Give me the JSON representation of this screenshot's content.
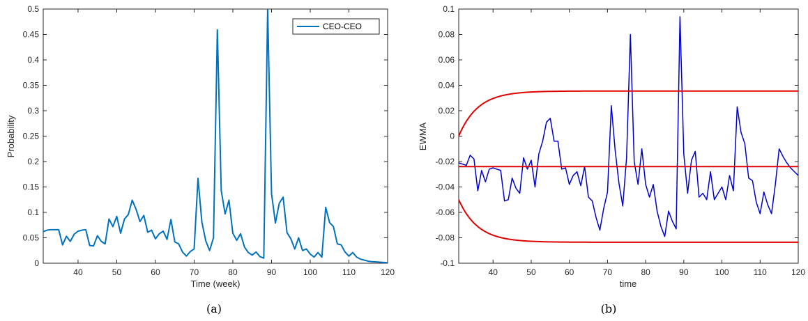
{
  "chart_data": [
    {
      "type": "line",
      "caption": "(a)",
      "xlabel": "Time (week)",
      "ylabel": "Probability",
      "xlim": [
        31,
        120
      ],
      "ylim": [
        0,
        0.5
      ],
      "xticks": [
        40,
        50,
        60,
        70,
        80,
        90,
        100,
        110,
        120
      ],
      "yticks": [
        0,
        0.05,
        0.1,
        0.15,
        0.2,
        0.25,
        0.3,
        0.35,
        0.4,
        0.45,
        0.5
      ],
      "ytick_labels": [
        "0",
        "0.05",
        "0.1",
        "0.15",
        "0.2",
        "0.25",
        "0.3",
        "0.35",
        "0.4",
        "0.45",
        "0.5"
      ],
      "grid": false,
      "legend_position": "top-right",
      "colors": {
        "series": "#0072BD"
      },
      "series": [
        {
          "name": "CEO-CEO",
          "x": [
            31,
            32,
            33,
            34,
            35,
            36,
            37,
            38,
            39,
            40,
            41,
            42,
            43,
            44,
            45,
            46,
            47,
            48,
            49,
            50,
            51,
            52,
            53,
            54,
            55,
            56,
            57,
            58,
            59,
            60,
            61,
            62,
            63,
            64,
            65,
            66,
            67,
            68,
            69,
            70,
            71,
            72,
            73,
            74,
            75,
            76,
            77,
            78,
            79,
            80,
            81,
            82,
            83,
            84,
            85,
            86,
            87,
            88,
            89,
            90,
            91,
            92,
            93,
            94,
            95,
            96,
            97,
            98,
            99,
            100,
            101,
            102,
            103,
            104,
            105,
            106,
            107,
            108,
            109,
            110,
            111,
            112,
            113,
            114,
            115,
            116,
            117,
            118,
            119,
            120
          ],
          "values": [
            0.062,
            0.065,
            0.066,
            0.066,
            0.066,
            0.036,
            0.053,
            0.043,
            0.057,
            0.063,
            0.065,
            0.066,
            0.035,
            0.034,
            0.054,
            0.043,
            0.038,
            0.087,
            0.072,
            0.092,
            0.059,
            0.087,
            0.096,
            0.124,
            0.106,
            0.082,
            0.094,
            0.061,
            0.065,
            0.048,
            0.058,
            0.063,
            0.047,
            0.086,
            0.042,
            0.038,
            0.022,
            0.014,
            0.023,
            0.028,
            0.167,
            0.081,
            0.044,
            0.025,
            0.05,
            0.459,
            0.143,
            0.097,
            0.124,
            0.059,
            0.045,
            0.058,
            0.032,
            0.021,
            0.016,
            0.022,
            0.013,
            0.01,
            0.5,
            0.137,
            0.079,
            0.118,
            0.13,
            0.06,
            0.048,
            0.028,
            0.05,
            0.025,
            0.028,
            0.018,
            0.012,
            0.021,
            0.012,
            0.11,
            0.08,
            0.072,
            0.038,
            0.036,
            0.022,
            0.014,
            0.021,
            0.012,
            0.008,
            0.006,
            0.004,
            0.003,
            0.0025,
            0.002,
            0.0015,
            0.001
          ]
        }
      ]
    },
    {
      "type": "line",
      "caption": "(b)",
      "xlabel": "time",
      "ylabel": "EWMA",
      "xlim": [
        31,
        120
      ],
      "ylim": [
        -0.1,
        0.1
      ],
      "xticks": [
        40,
        50,
        60,
        70,
        80,
        90,
        100,
        110,
        120
      ],
      "yticks": [
        -0.1,
        -0.08,
        -0.06,
        -0.04,
        -0.02,
        0,
        0.02,
        0.04,
        0.06,
        0.08,
        0.1
      ],
      "ytick_labels": [
        "-0.1",
        "-0.08",
        "-0.06",
        "-0.04",
        "-0.02",
        "0",
        "0.02",
        "0.04",
        "0.06",
        "0.08",
        "0.1"
      ],
      "grid": false,
      "colors": {
        "ewma": "#0000CC",
        "limits": "#E00000"
      },
      "center_line": -0.024,
      "ucl_limit": 0.0355,
      "lcl_limit": -0.0835,
      "limit_start": [
        31,
        0.0,
        -0.05
      ],
      "limit_rate": 0.2,
      "series": [
        {
          "role": "ewma",
          "x": [
            31,
            32,
            33,
            34,
            35,
            36,
            37,
            38,
            39,
            40,
            41,
            42,
            43,
            44,
            45,
            46,
            47,
            48,
            49,
            50,
            51,
            52,
            53,
            54,
            55,
            56,
            57,
            58,
            59,
            60,
            61,
            62,
            63,
            64,
            65,
            66,
            67,
            68,
            69,
            70,
            71,
            72,
            73,
            74,
            75,
            76,
            77,
            78,
            79,
            80,
            81,
            82,
            83,
            84,
            85,
            86,
            87,
            88,
            89,
            90,
            91,
            92,
            93,
            94,
            95,
            96,
            97,
            98,
            99,
            100,
            101,
            102,
            103,
            104,
            105,
            106,
            107,
            108,
            109,
            110,
            111,
            112,
            113,
            114,
            115,
            116,
            117,
            118,
            119,
            120
          ],
          "values": [
            -0.021,
            -0.022,
            -0.023,
            -0.015,
            -0.018,
            -0.043,
            -0.027,
            -0.036,
            -0.026,
            -0.025,
            -0.026,
            -0.027,
            -0.051,
            -0.05,
            -0.033,
            -0.041,
            -0.045,
            -0.017,
            -0.026,
            -0.019,
            -0.04,
            -0.014,
            -0.004,
            0.011,
            0.014,
            -0.004,
            -0.004,
            -0.026,
            -0.025,
            -0.038,
            -0.031,
            -0.028,
            -0.039,
            -0.024,
            -0.048,
            -0.051,
            -0.064,
            -0.074,
            -0.057,
            -0.044,
            0.024,
            -0.011,
            -0.037,
            -0.055,
            -0.017,
            0.08,
            -0.02,
            -0.038,
            -0.01,
            -0.038,
            -0.048,
            -0.038,
            -0.059,
            -0.071,
            -0.079,
            -0.059,
            -0.067,
            -0.073,
            0.094,
            -0.014,
            -0.045,
            -0.019,
            -0.012,
            -0.048,
            -0.045,
            -0.05,
            -0.028,
            -0.05,
            -0.045,
            -0.04,
            -0.05,
            -0.031,
            -0.043,
            0.023,
            0.003,
            -0.006,
            -0.033,
            -0.035,
            -0.052,
            -0.061,
            -0.044,
            -0.054,
            -0.061,
            -0.038,
            -0.01,
            -0.016,
            -0.021,
            -0.025,
            -0.028,
            -0.031
          ]
        }
      ]
    }
  ]
}
